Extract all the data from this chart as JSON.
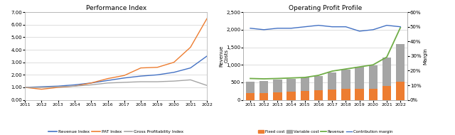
{
  "years": [
    2011,
    2012,
    2013,
    2014,
    2015,
    2016,
    2017,
    2018,
    2019,
    2020,
    2021,
    2022
  ],
  "chart1": {
    "title": "Performance Index",
    "revenue_index": [
      1.0,
      1.05,
      1.1,
      1.2,
      1.35,
      1.55,
      1.75,
      1.9,
      2.0,
      2.2,
      2.55,
      3.5
    ],
    "pat_index": [
      1.0,
      0.85,
      1.0,
      1.1,
      1.35,
      1.7,
      1.95,
      2.55,
      2.6,
      3.0,
      4.2,
      6.5
    ],
    "gp_index": [
      1.0,
      1.0,
      1.05,
      1.1,
      1.2,
      1.35,
      1.4,
      1.45,
      1.45,
      1.5,
      1.6,
      1.15
    ],
    "ylim": [
      0,
      7.0
    ],
    "yticks": [
      0.0,
      1.0,
      2.0,
      3.0,
      4.0,
      5.0,
      6.0,
      7.0
    ],
    "revenue_color": "#4472c4",
    "pat_color": "#ed7d31",
    "gp_color": "#a5a5a5",
    "legend_labels": [
      "Revenue Index",
      "PAT Index",
      "Gross Profitability Index"
    ]
  },
  "chart2": {
    "title": "Operating Profit Profile",
    "ylabel_left": "Revenue\nCosts",
    "ylabel_right": "Margin",
    "fixed_cost": [
      185,
      195,
      215,
      230,
      245,
      270,
      290,
      310,
      315,
      325,
      390,
      510
    ],
    "variable_cost": [
      330,
      345,
      360,
      375,
      390,
      410,
      490,
      560,
      620,
      660,
      810,
      1090
    ],
    "revenue_line": [
      610,
      600,
      610,
      625,
      640,
      700,
      820,
      880,
      940,
      1000,
      1220,
      2060
    ],
    "contrib_margin": [
      0.49,
      0.48,
      0.49,
      0.49,
      0.5,
      0.51,
      0.5,
      0.5,
      0.47,
      0.48,
      0.51,
      0.5
    ],
    "ylim_left": [
      0,
      2500
    ],
    "ylim_right": [
      0.0,
      0.6
    ],
    "yticks_left": [
      0,
      500,
      1000,
      1500,
      2000,
      2500
    ],
    "yticks_right": [
      0.0,
      0.1,
      0.2,
      0.3,
      0.4,
      0.5,
      0.6
    ],
    "fixed_color": "#ed7d31",
    "variable_color": "#a5a5a5",
    "revenue_line_color": "#70ad47",
    "contrib_color": "#4472c4",
    "legend_labels": [
      "Fixed cost",
      "Variable cost",
      "Revenue",
      "Contribution margin"
    ]
  }
}
